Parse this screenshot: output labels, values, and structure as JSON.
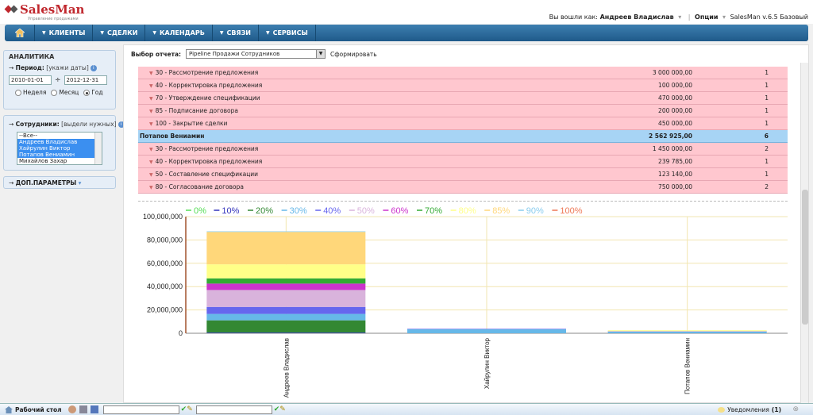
{
  "app": {
    "logo_name": "SalesMan",
    "logo_tagline": "Управление продажами"
  },
  "user": {
    "prefix": "Вы вошли как:",
    "name": "Андреев Владислав",
    "options": "Опции",
    "version": "SalesMan v.6.5 Базовый"
  },
  "nav": {
    "items": [
      "КЛИЕНТЫ",
      "СДЕЛКИ",
      "КАЛЕНДАРЬ",
      "СВЯЗИ",
      "СЕРВИСЫ"
    ]
  },
  "sidebar": {
    "analytics_title": "АНАЛИТИКА",
    "period_label": "Период:",
    "period_hint": "[укажи даты]",
    "date_from": "2010-01-01",
    "date_to": "2012-12-31",
    "date_sep": "÷",
    "radio_week": "Неделя",
    "radio_month": "Месяц",
    "radio_year": "Год",
    "employees_label": "Сотрудники:",
    "employees_hint": "[выдели нужных]",
    "employees": [
      "--Все--",
      "Андреев Владислав",
      "Хайрулин Виктор",
      "Потапов Вениамин",
      "Михайлов Захар"
    ],
    "extra_params": "ДОП.ПАРАМЕТРЫ"
  },
  "report": {
    "label": "Выбор отчета:",
    "selected": "Pipeline Продажи Сотрудников",
    "build": "Сформировать"
  },
  "table": {
    "rows": [
      {
        "stage": "30 - Рассмотрение предложения",
        "sum": "3 000 000,00",
        "count": "1",
        "group": false
      },
      {
        "stage": "40 - Корректировка предложения",
        "sum": "100 000,00",
        "count": "1",
        "group": false
      },
      {
        "stage": "70 - Утверждение спецификации",
        "sum": "470 000,00",
        "count": "1",
        "group": false
      },
      {
        "stage": "85 - Подписание договора",
        "sum": "200 000,00",
        "count": "1",
        "group": false
      },
      {
        "stage": "100 - Закрытие сделки",
        "sum": "450 000,00",
        "count": "1",
        "group": false
      },
      {
        "stage": "Потапов Вениамин",
        "sum": "2 562 925,00",
        "count": "6",
        "group": true
      },
      {
        "stage": "30 - Рассмотрение предложения",
        "sum": "1 450 000,00",
        "count": "2",
        "group": false
      },
      {
        "stage": "40 - Корректировка предложения",
        "sum": "239 785,00",
        "count": "1",
        "group": false
      },
      {
        "stage": "50 - Составление спецификации",
        "sum": "123 140,00",
        "count": "1",
        "group": false
      },
      {
        "stage": "80 - Согласование договора",
        "sum": "750 000,00",
        "count": "2",
        "group": false
      }
    ]
  },
  "chart_data": {
    "type": "bar",
    "stacked": true,
    "categories": [
      "Андреев Владислав",
      "Хайрулин Виктор",
      "Потапов Вениамин"
    ],
    "yticks": [
      "100,000,000",
      "80,000,000",
      "60,000,000",
      "40,000,000",
      "20,000,000",
      "0"
    ],
    "ylim": [
      0,
      100000000
    ],
    "grid": true,
    "legend_position": "top",
    "series": [
      {
        "name": "0%",
        "color": "#55dd55",
        "values": [
          0,
          0,
          0
        ]
      },
      {
        "name": "10%",
        "color": "#3333bb",
        "values": [
          600000,
          0,
          0
        ]
      },
      {
        "name": "20%",
        "color": "#338833",
        "values": [
          10500000,
          0,
          0
        ]
      },
      {
        "name": "30%",
        "color": "#66b8e8",
        "values": [
          5500000,
          3500000,
          1450000
        ]
      },
      {
        "name": "40%",
        "color": "#6666ee",
        "values": [
          6000000,
          300000,
          240000
        ]
      },
      {
        "name": "50%",
        "color": "#d9b3dc",
        "values": [
          14500000,
          0,
          120000
        ]
      },
      {
        "name": "60%",
        "color": "#cc33cc",
        "values": [
          5500000,
          0,
          0
        ]
      },
      {
        "name": "70%",
        "color": "#33aa33",
        "values": [
          4500000,
          0,
          0
        ]
      },
      {
        "name": "80%",
        "color": "#ffff88",
        "values": [
          12000000,
          0,
          750000
        ]
      },
      {
        "name": "85%",
        "color": "#ffd77a",
        "values": [
          27800000,
          0,
          0
        ]
      },
      {
        "name": "90%",
        "color": "#88ccee",
        "values": [
          500000,
          0,
          0
        ]
      },
      {
        "name": "100%",
        "color": "#ee7755",
        "values": [
          0,
          0,
          0
        ]
      }
    ]
  },
  "bottom": {
    "desktop": "Рабочий стол",
    "notifications": "Уведомления",
    "notif_count": "(1)"
  }
}
